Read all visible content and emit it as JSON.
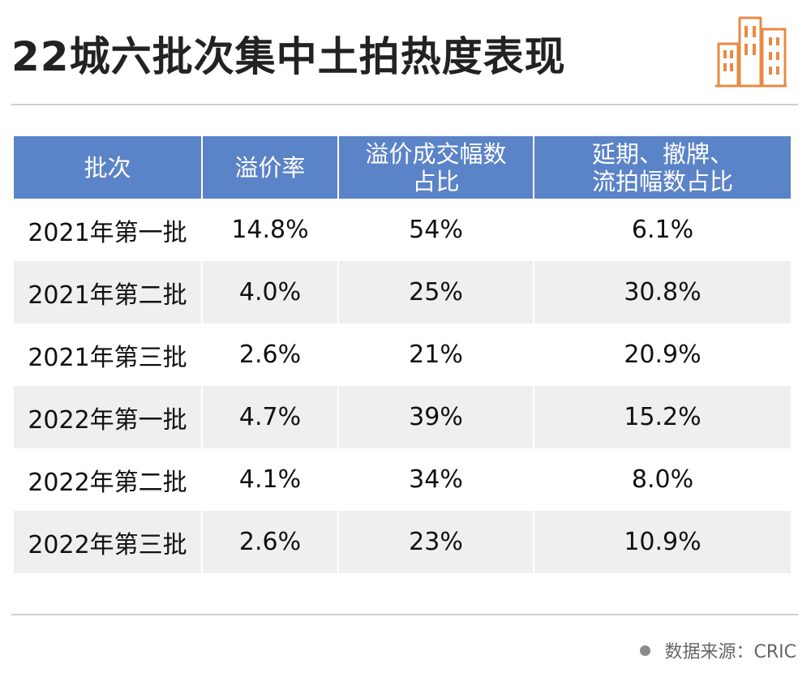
{
  "title": "22城六批次集中土拍热度表现",
  "chart_data": {
    "type": "table",
    "columns": [
      "批次",
      "溢价率",
      "溢价成交幅数占比",
      "延期、撤牌、流拍幅数占比"
    ],
    "columns_lines": [
      [
        "批次"
      ],
      [
        "溢价率"
      ],
      [
        "溢价成交幅数",
        "占比"
      ],
      [
        "延期、撤牌、",
        "流拍幅数占比"
      ]
    ],
    "rows": [
      [
        "2021年第一批",
        "14.8%",
        "54%",
        "6.1%"
      ],
      [
        "2021年第二批",
        "4.0%",
        "25%",
        "30.8%"
      ],
      [
        "2021年第三批",
        "2.6%",
        "21%",
        "20.9%"
      ],
      [
        "2022年第一批",
        "4.7%",
        "39%",
        "15.2%"
      ],
      [
        "2022年第二批",
        "4.1%",
        "34%",
        "8.0%"
      ],
      [
        "2022年第三批",
        "2.6%",
        "23%",
        "10.9%"
      ]
    ]
  },
  "source": "数据来源：CRIC",
  "colors": {
    "header_bg": "#5b83c7",
    "header_text": "#ffffff",
    "stripe": "#efefef",
    "logo": "#e88a44"
  },
  "icons": {
    "logo": "buildings-icon"
  }
}
